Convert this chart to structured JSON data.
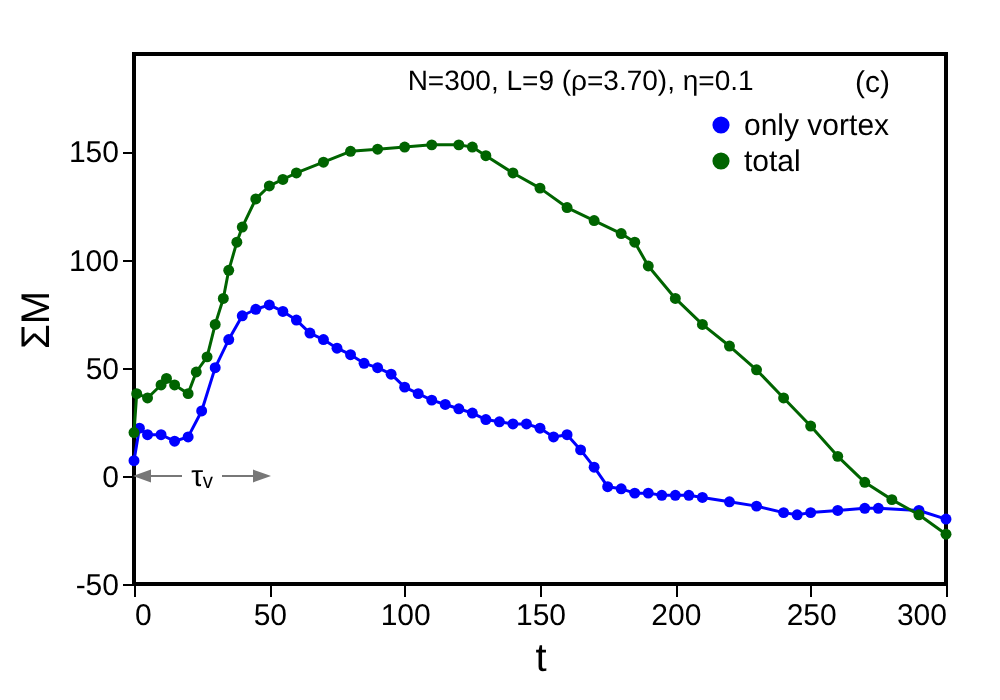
{
  "chart_data": {
    "type": "line",
    "title": "N=300, L=9 (ρ=3.70), η=0.1",
    "xlabel": "t",
    "ylabel": "ΣM",
    "annotations": [
      "(c)",
      "τᵥ"
    ],
    "xlim": [
      0,
      300
    ],
    "ylim": [
      -50,
      195
    ],
    "xticks": [
      0,
      50,
      100,
      150,
      200,
      250,
      300
    ],
    "yticks": [
      -50,
      0,
      50,
      100,
      150
    ],
    "grid": false,
    "legend": "top right",
    "marker": "circle",
    "line_style": "solid",
    "series": [
      {
        "name": "only vortex",
        "color": "#0000ff",
        "x": [
          0,
          2,
          5,
          10,
          15,
          20,
          25,
          30,
          35,
          40,
          45,
          50,
          55,
          60,
          65,
          70,
          75,
          80,
          85,
          90,
          95,
          100,
          105,
          110,
          115,
          120,
          125,
          130,
          135,
          140,
          145,
          150,
          155,
          160,
          165,
          170,
          175,
          180,
          185,
          190,
          195,
          200,
          205,
          210,
          220,
          230,
          240,
          245,
          250,
          260,
          270,
          275,
          290,
          300
        ],
        "values": [
          7,
          22,
          19,
          19,
          16,
          18,
          30,
          50,
          63,
          74,
          77,
          79,
          76,
          72,
          66,
          63,
          59,
          56,
          52,
          50,
          47,
          41,
          38,
          35,
          33,
          31,
          29,
          26,
          25,
          24,
          24,
          22,
          18,
          19,
          12,
          4,
          -5,
          -6,
          -8,
          -8,
          -9,
          -9,
          -9,
          -10,
          -12,
          -14,
          -17,
          -18,
          -17,
          -16,
          -15,
          -15,
          -16,
          -20
        ]
      },
      {
        "name": "total",
        "color": "#006400",
        "x": [
          0,
          1,
          5,
          10,
          12,
          15,
          20,
          23,
          27,
          30,
          33,
          35,
          38,
          40,
          45,
          50,
          55,
          60,
          70,
          80,
          90,
          100,
          110,
          120,
          125,
          130,
          140,
          150,
          160,
          170,
          180,
          185,
          190,
          200,
          210,
          220,
          230,
          240,
          250,
          260,
          270,
          280,
          290,
          300
        ],
        "values": [
          20,
          38,
          36,
          42,
          45,
          42,
          38,
          48,
          55,
          70,
          82,
          95,
          108,
          115,
          128,
          134,
          137,
          140,
          145,
          150,
          151,
          152,
          153,
          153,
          152,
          148,
          140,
          133,
          124,
          118,
          112,
          108,
          97,
          82,
          70,
          60,
          49,
          36,
          23,
          9,
          -3,
          -11,
          -18,
          -27
        ]
      }
    ]
  }
}
